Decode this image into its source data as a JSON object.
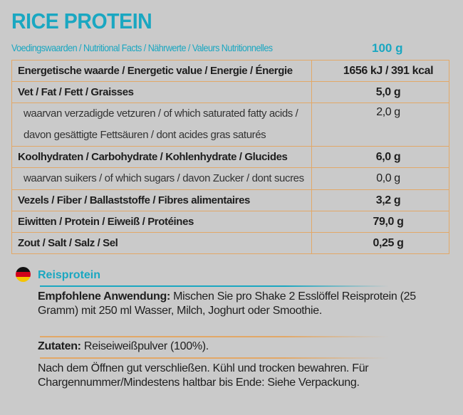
{
  "title": "RICE PROTEIN",
  "subtitle": "Voedingswaarden / Nutritional Facts / Nährwerte / Valeurs Nutritionnelles",
  "per": "100 g",
  "rows": [
    {
      "label": "Energetische waarde / Energetic value / Energie / Énergie",
      "value": "1656 kJ / 391 kcal"
    },
    {
      "label": "Vet / Fat / Fett / Graisses",
      "value": "5,0 g"
    },
    {
      "label": "waarvan verzadigde vetzuren / of which saturated fatty acids /",
      "label2": "davon gesättigte Fettsäuren / dont acides gras saturés",
      "value": "2,0 g"
    },
    {
      "label": "Koolhydraten / Carbohydrate / Kohlenhydrate / Glucides",
      "value": "6,0 g"
    },
    {
      "label": "waarvan suikers / of which sugars / davon Zucker / dont sucres",
      "value": "0,0 g"
    },
    {
      "label": "Vezels / Fiber / Ballaststoffe / Fibres alimentaires",
      "value": "3,2 g"
    },
    {
      "label": "Eiwitten / Protein / Eiweiß / Protéines",
      "value": "79,0 g"
    },
    {
      "label": "Zout / Salt / Salz / Sel",
      "value": "0,25 g"
    }
  ],
  "german": {
    "heading": "Reisprotein",
    "usage_label": "Empfohlene Anwendung:",
    "usage_text": " Mischen Sie pro Shake 2 Esslöffel Reisprotein (25 Gramm) mit 250 ml Wasser, Milch, Joghurt oder Smoothie.",
    "ingredients_label": "Zutaten:",
    "ingredients_text": " Reiseiweißpulver (100%).",
    "storage": "Nach dem Öffnen gut verschließen. Kühl und trocken bewahren. Für Chargennummer/Mindestens haltbar bis Ende: Siehe Verpackung."
  },
  "colors": {
    "accent": "#1aa7c1",
    "border": "#e2a867",
    "background": "#cacaca"
  },
  "icons": {
    "flag": "germany-flag-icon"
  }
}
